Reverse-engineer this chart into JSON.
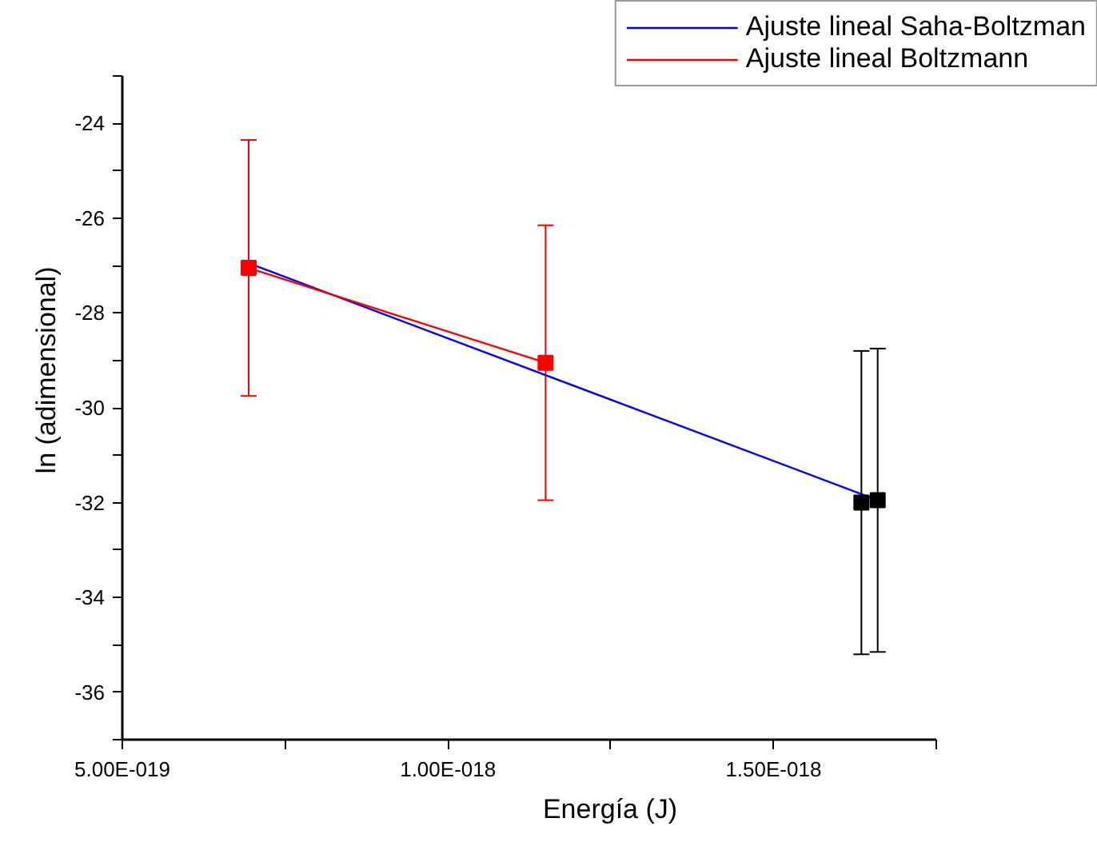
{
  "chart_data": {
    "type": "line",
    "xlabel": "Energía (J)",
    "ylabel": "ln (adimensional)",
    "xlim": [
      5e-19,
      1.75e-18
    ],
    "ylim": [
      -37,
      -23
    ],
    "xticks": [
      {
        "value": 5e-19,
        "label": "5.00E-019"
      },
      {
        "value": 7.5e-19,
        "label": null
      },
      {
        "value": 1e-18,
        "label": "1.00E-018"
      },
      {
        "value": 1.25e-18,
        "label": null
      },
      {
        "value": 1.5e-18,
        "label": "1.50E-018"
      },
      {
        "value": 1.75e-18,
        "label": null
      }
    ],
    "yticks": [
      {
        "value": -37,
        "label": null
      },
      -36,
      {
        "value": -35,
        "label": null
      },
      -34,
      {
        "value": -33,
        "label": null
      },
      -32,
      {
        "value": -31,
        "label": null
      },
      -30,
      {
        "value": -29,
        "label": null
      },
      -28,
      {
        "value": -27,
        "label": null
      },
      -26,
      {
        "value": -25,
        "label": null
      },
      -24,
      {
        "value": -23,
        "label": null
      }
    ],
    "grid": false,
    "legend": "top right",
    "series": [
      {
        "type": "line",
        "name": "Ajuste lineal Saha-Boltzman",
        "color": "#0000ff",
        "x": [
          6.94e-19,
          1.66e-18
        ],
        "values": [
          -26.95,
          -31.95
        ]
      },
      {
        "type": "line",
        "name": "Ajuste lineal Boltzmann",
        "color": "#ff0000",
        "x": [
          6.94e-19,
          1.15e-18
        ],
        "values": [
          -27.05,
          -29.05
        ]
      },
      {
        "type": "scatter",
        "color": "#ff0000",
        "marker": "square",
        "x": [
          6.94e-19,
          1.15e-18
        ],
        "values": [
          -27.05,
          -29.05
        ],
        "errors": [
          2.7,
          2.9
        ]
      },
      {
        "type": "scatter",
        "color": "#000000",
        "marker": "square",
        "x": [
          1.635e-18,
          1.66e-18
        ],
        "values": [
          -32.0,
          -31.95
        ],
        "errors": [
          3.2,
          3.2
        ]
      }
    ]
  }
}
